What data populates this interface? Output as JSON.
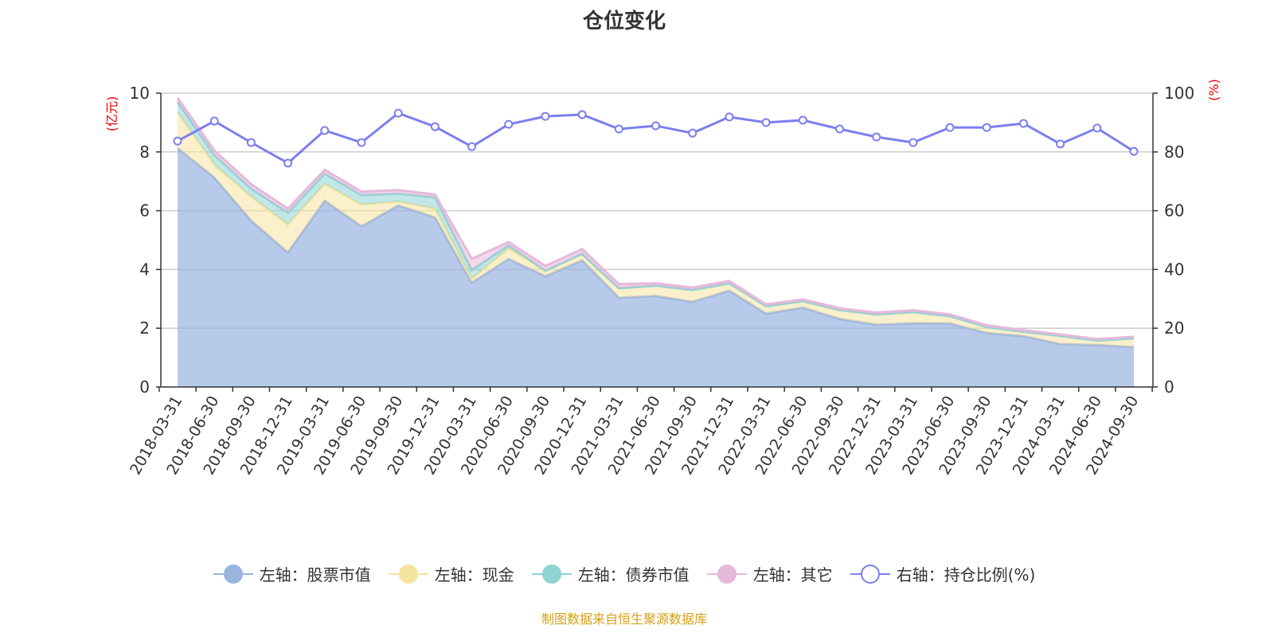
{
  "title": "仓位变化",
  "footer": "制图数据来自恒生聚源数据库",
  "chart_data": {
    "type": "area",
    "title": "仓位变化",
    "ylabel_left": "(亿元)",
    "ylabel_right": "(%)",
    "ylim_left": [
      0,
      10
    ],
    "ylim_right": [
      0,
      100
    ],
    "yticks_left": [
      0,
      2,
      4,
      6,
      8,
      10
    ],
    "yticks_right": [
      0,
      20,
      40,
      60,
      80,
      100
    ],
    "grid": true,
    "legend_position": "bottom",
    "categories": [
      "2018-03-31",
      "2018-06-30",
      "2018-09-30",
      "2018-12-31",
      "2019-03-31",
      "2019-06-30",
      "2019-09-30",
      "2019-12-31",
      "2020-03-31",
      "2020-06-30",
      "2020-09-30",
      "2020-12-31",
      "2021-03-31",
      "2021-06-30",
      "2021-09-30",
      "2021-12-31",
      "2022-03-31",
      "2022-06-30",
      "2022-09-30",
      "2022-12-31",
      "2023-03-31",
      "2023-06-30",
      "2023-09-30",
      "2023-12-31",
      "2024-03-31",
      "2024-06-30",
      "2024-09-30"
    ],
    "series": [
      {
        "name": "左轴：股票市值",
        "axis": "left",
        "stacked": true,
        "color": "#9ab4e0",
        "values": [
          8.13,
          7.13,
          5.66,
          4.58,
          6.34,
          5.47,
          6.18,
          5.77,
          3.55,
          4.36,
          3.77,
          4.31,
          3.04,
          3.1,
          2.9,
          3.28,
          2.5,
          2.7,
          2.32,
          2.12,
          2.17,
          2.16,
          1.84,
          1.73,
          1.46,
          1.43,
          1.36
        ]
      },
      {
        "name": "左轴：现金",
        "axis": "left",
        "stacked": true,
        "color": "#f5e3a0",
        "values": [
          1.22,
          0.43,
          0.82,
          0.95,
          0.57,
          0.74,
          0.13,
          0.3,
          0.14,
          0.36,
          0.19,
          0.22,
          0.32,
          0.35,
          0.4,
          0.25,
          0.25,
          0.22,
          0.3,
          0.35,
          0.38,
          0.25,
          0.2,
          0.15,
          0.28,
          0.15,
          0.3
        ]
      },
      {
        "name": "左轴：债券市值",
        "axis": "left",
        "stacked": true,
        "color": "#8fd3d3",
        "values": [
          0.35,
          0.33,
          0.27,
          0.4,
          0.35,
          0.32,
          0.27,
          0.38,
          0.29,
          0.1,
          0,
          0,
          0,
          0,
          0,
          0,
          0,
          0,
          0,
          0,
          0,
          0,
          0,
          0,
          0,
          0,
          0
        ]
      },
      {
        "name": "左轴：其它",
        "axis": "left",
        "stacked": true,
        "color": "#e6b8da",
        "values": [
          0.14,
          0.16,
          0.15,
          0.14,
          0.13,
          0.12,
          0.12,
          0.1,
          0.38,
          0.11,
          0.16,
          0.16,
          0.14,
          0.08,
          0.08,
          0.08,
          0.06,
          0.06,
          0.06,
          0.06,
          0.06,
          0.06,
          0.06,
          0.05,
          0.05,
          0.05,
          0.05
        ]
      },
      {
        "name": "右轴：持仓比例(%)",
        "axis": "right",
        "stacked": false,
        "color": "#7b7ff0",
        "values": [
          83.7,
          90.5,
          83.2,
          76.2,
          87.3,
          83.2,
          93.2,
          88.6,
          81.8,
          89.4,
          92.1,
          92.7,
          87.8,
          88.9,
          86.4,
          91.9,
          90.0,
          90.8,
          87.8,
          85.1,
          83.2,
          88.3,
          88.3,
          89.7,
          82.7,
          88.1,
          80.2
        ]
      }
    ]
  }
}
